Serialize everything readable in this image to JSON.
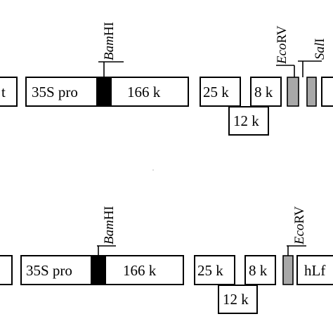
{
  "constructs": [
    {
      "labels": {
        "left_partial": "t",
        "promoter": "35S pro",
        "seg_166": "166 k",
        "seg_25": "25 k",
        "seg_8": "8 k",
        "seg_12": "12 k"
      },
      "sites": {
        "bamhi_italic": "Bam",
        "bamhi_upright": "HI",
        "ecorv_italic": "Eco",
        "ecorv_upright": "RV",
        "sali_italic": "Sal",
        "sali_upright": "I"
      }
    },
    {
      "labels": {
        "promoter": "35S pro",
        "seg_166": "166 k",
        "seg_25": "25 k",
        "seg_8": "8 k",
        "seg_12": "12 k",
        "hlf": "hLf"
      },
      "sites": {
        "bamhi_italic": "Bam",
        "bamhi_upright": "HI",
        "ecorv_italic": "Eco",
        "ecorv_upright": "RV"
      }
    }
  ]
}
